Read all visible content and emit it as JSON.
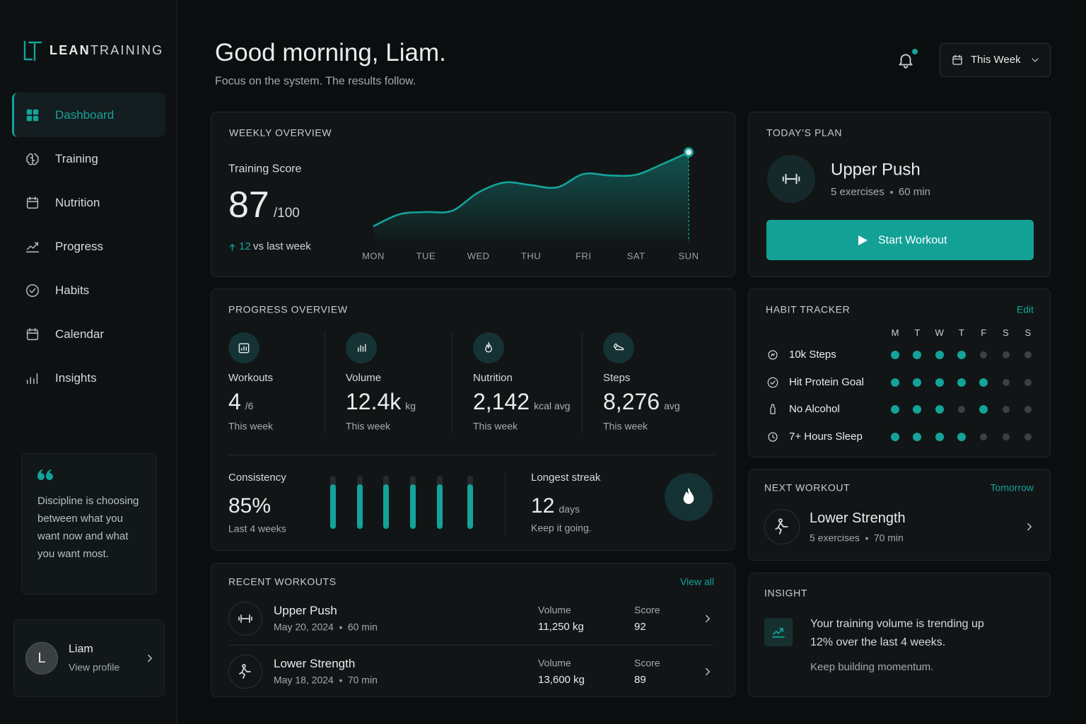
{
  "brand": {
    "lead": "LEAN",
    "rest": "TRAINING"
  },
  "nav": [
    {
      "label": "Dashboard",
      "active": true
    },
    {
      "label": "Training"
    },
    {
      "label": "Nutrition"
    },
    {
      "label": "Progress"
    },
    {
      "label": "Habits"
    },
    {
      "label": "Calendar"
    },
    {
      "label": "Insights"
    }
  ],
  "quote": "Discipline is choosing between what you want now and what you want most.",
  "profile": {
    "initial": "L",
    "name": "Liam",
    "link": "View profile"
  },
  "header": {
    "greeting": "Good morning, Liam.",
    "subtitle": "Focus on the system. The results follow.",
    "period": "This Week",
    "notification": true
  },
  "weekly_overview": {
    "title": "WEEKLY OVERVIEW",
    "score_label": "Training Score",
    "score": 87,
    "score_max": "/100",
    "change": 12,
    "change_label": "vs last week"
  },
  "chart_data": {
    "type": "line",
    "x": [
      0,
      0.5,
      1,
      1.5,
      2,
      2.5,
      3,
      3.5,
      4,
      4.5,
      5,
      5.5,
      6
    ],
    "values": [
      56.4,
      61.4,
      62.3,
      62.8,
      70.4,
      74.5,
      73.4,
      72.5,
      78.0,
      77.4,
      77.7,
      82.1,
      87
    ],
    "xlim": [
      0,
      6
    ],
    "xticks": [
      {
        "value": 0,
        "label": "MON"
      },
      {
        "value": 1,
        "label": "TUE"
      },
      {
        "value": 2,
        "label": "WED"
      },
      {
        "value": 3,
        "label": "THU"
      },
      {
        "value": 4,
        "label": "FRI"
      },
      {
        "value": 5,
        "label": "SAT"
      },
      {
        "value": 6,
        "label": "SUN"
      }
    ],
    "ylim": [
      50,
      90
    ],
    "color": "#14a39a"
  },
  "todays_plan": {
    "title": "TODAY’S PLAN",
    "workout": "Upper Push",
    "exercises": "5 exercises",
    "duration": "60 min",
    "action": "Start Workout"
  },
  "progress_overview": {
    "title": "PROGRESS OVERVIEW",
    "stats": [
      {
        "label": "Workouts",
        "value": 4,
        "unit": "/6",
        "note": "This week"
      },
      {
        "label": "Volume",
        "value": "12.4k",
        "unit": "kg",
        "note": "This week"
      },
      {
        "label": "Nutrition",
        "value": "2,142",
        "unit": "kcal avg",
        "note": "This week"
      },
      {
        "label": "Steps",
        "value": "8,276",
        "unit": "avg",
        "note": "This week"
      }
    ],
    "consistency": {
      "label": "Consistency",
      "value": "85%",
      "note": "Last 4 weeks",
      "bars": [
        84,
        84,
        84,
        84,
        84,
        84
      ]
    },
    "streak": {
      "label": "Longest streak",
      "value": 12,
      "unit": "days",
      "note": "Keep it going."
    }
  },
  "recent_workouts": {
    "title": "RECENT WORKOUTS",
    "link": "View all",
    "rows": [
      {
        "name": "Upper Push",
        "date": "May 20, 2024",
        "duration": "60 min",
        "volume_label": "Volume",
        "volume": "11,250 kg",
        "score_label": "Score",
        "score": 92
      },
      {
        "name": "Lower Strength",
        "date": "May 18, 2024",
        "duration": "70 min",
        "volume_label": "Volume",
        "volume": "13,600 kg",
        "score_label": "Score",
        "score": 89
      }
    ]
  },
  "habit_tracker": {
    "title": "HABIT TRACKER",
    "link": "Edit",
    "days": [
      "M",
      "T",
      "W",
      "T",
      "F",
      "S",
      "S"
    ],
    "habits": [
      {
        "name": "10k Steps",
        "done": [
          true,
          true,
          true,
          true,
          false,
          false,
          false
        ]
      },
      {
        "name": "Hit Protein Goal",
        "done": [
          true,
          true,
          true,
          true,
          true,
          false,
          false
        ]
      },
      {
        "name": "No Alcohol",
        "done": [
          true,
          true,
          true,
          false,
          true,
          false,
          false
        ]
      },
      {
        "name": "7+ Hours Sleep",
        "done": [
          true,
          true,
          true,
          true,
          false,
          false,
          false
        ]
      }
    ]
  },
  "next_workout": {
    "title": "NEXT WORKOUT",
    "when": "Tomorrow",
    "workout": "Lower Strength",
    "exercises": "5 exercises",
    "duration": "70 min"
  },
  "insight": {
    "title": "INSIGHT",
    "text": "Your training volume is trending up 12% over the last 4 weeks.",
    "note": "Keep building momentum."
  }
}
